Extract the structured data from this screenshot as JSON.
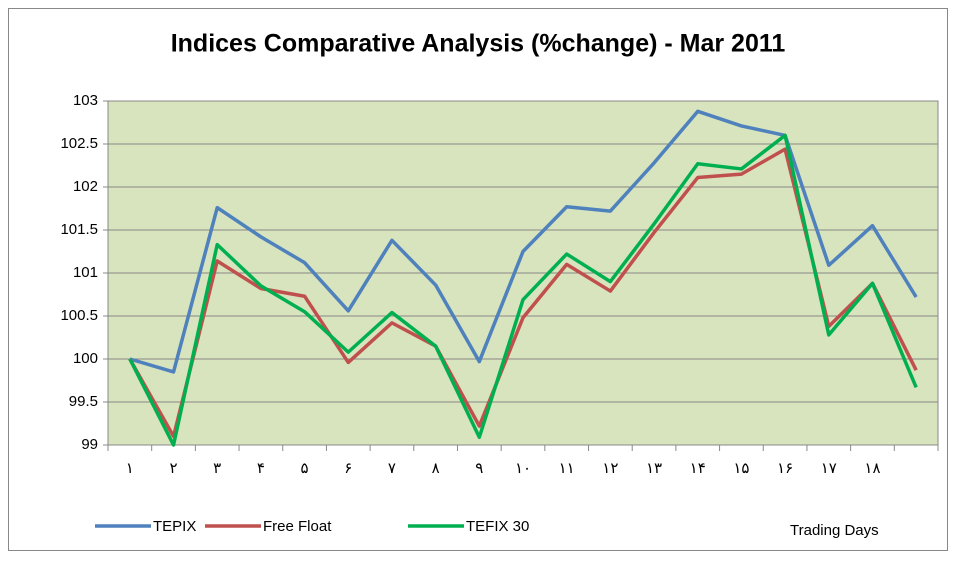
{
  "chart_data": {
    "type": "line",
    "title": "Indices Comparative Analysis (%change) - Mar 2011",
    "x_label": "Trading Days",
    "categories": [
      "۱",
      "۲",
      "۳",
      "۴",
      "۵",
      "۶",
      "۷",
      "۸",
      "۹",
      "۱۰",
      "۱۱",
      "۱۲",
      "۱۳",
      "۱۴",
      "۱۵",
      "۱۶",
      "۱۷",
      "۱۸",
      null
    ],
    "series": [
      {
        "name": "TEPIX",
        "color": "#4f81bd",
        "values": [
          100,
          99.85,
          101.76,
          101.42,
          101.12,
          100.56,
          101.38,
          100.86,
          99.97,
          101.25,
          101.77,
          101.72,
          102.28,
          102.88,
          102.71,
          102.6,
          101.09,
          101.55,
          100.72
        ]
      },
      {
        "name": "Free Float",
        "color": "#c0504d",
        "values": [
          100,
          99.1,
          101.14,
          100.82,
          100.73,
          99.96,
          100.42,
          100.15,
          99.22,
          100.48,
          101.1,
          100.79,
          101.47,
          102.11,
          102.15,
          102.44,
          100.38,
          100.88,
          99.87
        ]
      },
      {
        "name": "TEFIX 30",
        "color": "#00b050",
        "values": [
          100,
          99.0,
          101.33,
          100.85,
          100.55,
          100.08,
          100.54,
          100.15,
          99.09,
          100.69,
          101.22,
          100.9,
          101.57,
          102.27,
          102.21,
          102.6,
          100.28,
          100.88,
          99.67
        ]
      }
    ],
    "ylim": [
      99,
      103
    ],
    "yticks": [
      99,
      99.5,
      100,
      100.5,
      101,
      101.5,
      102,
      102.5,
      103
    ],
    "grid": true,
    "legend": "bottom",
    "plot_background": "#d7e4bd"
  }
}
